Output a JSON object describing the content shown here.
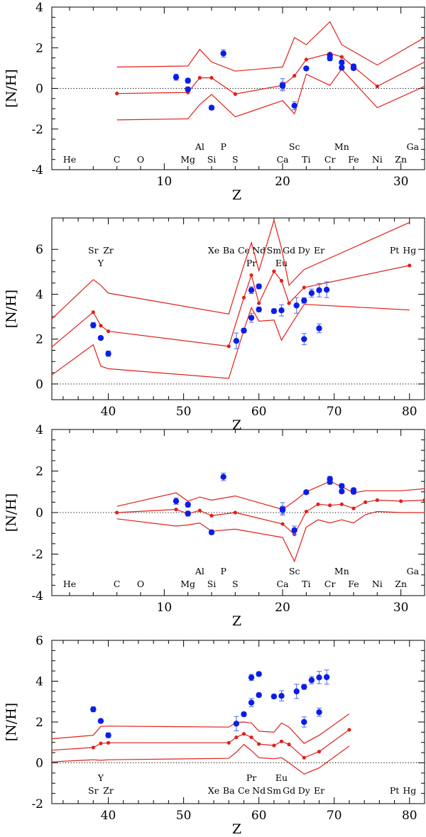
{
  "chart_data": [
    {
      "type": "scatter",
      "xlabel": "Z",
      "ylabel": "[N/H]",
      "xlim": [
        0.5,
        32
      ],
      "ylim": [
        -4,
        4
      ],
      "xticks": [
        10,
        20,
        30
      ],
      "yticks": [
        -4,
        -2,
        0,
        2,
        4
      ],
      "reference_line": 0,
      "element_labels": [
        {
          "text": "He",
          "z": 2,
          "row": "low"
        },
        {
          "text": "C",
          "z": 6,
          "row": "low"
        },
        {
          "text": "O",
          "z": 8,
          "row": "low"
        },
        {
          "text": "Mg",
          "z": 12,
          "row": "low"
        },
        {
          "text": "Si",
          "z": 14,
          "row": "low"
        },
        {
          "text": "S",
          "z": 16,
          "row": "low"
        },
        {
          "text": "Ca",
          "z": 20,
          "row": "low"
        },
        {
          "text": "Ti",
          "z": 22,
          "row": "low"
        },
        {
          "text": "Cr",
          "z": 24,
          "row": "low"
        },
        {
          "text": "Fe",
          "z": 26,
          "row": "low"
        },
        {
          "text": "Ni",
          "z": 28,
          "row": "low"
        },
        {
          "text": "Zn",
          "z": 30,
          "row": "low"
        },
        {
          "text": "Al",
          "z": 13,
          "row": "high"
        },
        {
          "text": "P",
          "z": 15,
          "row": "high"
        },
        {
          "text": "Sc",
          "z": 21,
          "row": "high"
        },
        {
          "text": "Mn",
          "z": 25,
          "row": "high"
        },
        {
          "text": "Ga",
          "z": 31,
          "row": "high"
        }
      ],
      "observed": [
        {
          "z": 11,
          "y": 0.55,
          "err": 0.15
        },
        {
          "z": 12,
          "y": 0.38,
          "err": 0.12
        },
        {
          "z": 12,
          "y": -0.05,
          "err": 0.12
        },
        {
          "z": 14,
          "y": -0.95,
          "err": 0.1
        },
        {
          "z": 15,
          "y": 1.72,
          "err": 0.18
        },
        {
          "z": 20,
          "y": 0.18,
          "err": 0.3
        },
        {
          "z": 20,
          "y": 0.12,
          "err": 0.18
        },
        {
          "z": 21,
          "y": -0.85,
          "err": 0.2
        },
        {
          "z": 22,
          "y": 0.98,
          "err": 0.08
        },
        {
          "z": 24,
          "y": 1.48,
          "err": 0.12
        },
        {
          "z": 24,
          "y": 1.62,
          "err": 0.12
        },
        {
          "z": 25,
          "y": 1.28,
          "err": 0.1
        },
        {
          "z": 25,
          "y": 1.02,
          "err": 0.1
        },
        {
          "z": 26,
          "y": 1.08,
          "err": 0.1
        },
        {
          "z": 26,
          "y": 1.0,
          "err": 0.1
        }
      ],
      "model": {
        "z": [
          6,
          12,
          13,
          14,
          16,
          20,
          21,
          22,
          24,
          25,
          28,
          32
        ],
        "mid": [
          -0.25,
          -0.2,
          0.52,
          0.52,
          -0.28,
          0.15,
          0.62,
          1.42,
          1.72,
          1.55,
          0.1,
          1.3
        ],
        "upper": [
          1.05,
          1.1,
          1.92,
          1.3,
          0.85,
          1.05,
          2.5,
          2.15,
          3.28,
          2.15,
          1.15,
          2.5
        ],
        "lower": [
          -1.55,
          -1.5,
          -0.8,
          -0.3,
          -1.4,
          -0.6,
          -1.25,
          0.7,
          0.15,
          0.95,
          -0.95,
          0.1
        ],
        "marker_z": [
          6,
          12,
          13,
          14,
          16,
          20,
          21,
          22,
          24,
          25,
          28
        ]
      }
    },
    {
      "type": "scatter",
      "xlabel": "Z",
      "ylabel": "[N/H]",
      "xlim": [
        32.5,
        82
      ],
      "ylim": [
        -0.7,
        7.4
      ],
      "xticks": [
        40,
        50,
        60,
        70,
        80
      ],
      "yticks": [
        0,
        2,
        4,
        6
      ],
      "reference_line": 0,
      "element_labels": [
        {
          "text": "Sr",
          "z": 38,
          "row": "high"
        },
        {
          "text": "Zr",
          "z": 40,
          "row": "high"
        },
        {
          "text": "Y",
          "z": 39,
          "row": "low"
        },
        {
          "text": "Xe",
          "z": 54,
          "row": "high"
        },
        {
          "text": "Ba",
          "z": 56,
          "row": "high"
        },
        {
          "text": "Ce",
          "z": 58,
          "row": "high"
        },
        {
          "text": "Nd",
          "z": 60,
          "row": "high"
        },
        {
          "text": "Sm",
          "z": 62,
          "row": "high"
        },
        {
          "text": "Gd",
          "z": 64,
          "row": "high"
        },
        {
          "text": "Dy",
          "z": 66,
          "row": "high"
        },
        {
          "text": "Er",
          "z": 68,
          "row": "high"
        },
        {
          "text": "Pt",
          "z": 78,
          "row": "high"
        },
        {
          "text": "Hg",
          "z": 80,
          "row": "high"
        },
        {
          "text": "Pr",
          "z": 59,
          "row": "low"
        },
        {
          "text": "Eu",
          "z": 63,
          "row": "low"
        }
      ],
      "observed": [
        {
          "z": 38,
          "y": 2.62,
          "err": 0.12
        },
        {
          "z": 39,
          "y": 2.05,
          "err": 0.08
        },
        {
          "z": 40,
          "y": 1.35,
          "err": 0.12
        },
        {
          "z": 57,
          "y": 1.92,
          "err": 0.35
        },
        {
          "z": 58,
          "y": 2.38,
          "err": 0.1
        },
        {
          "z": 59,
          "y": 2.95,
          "err": 0.2
        },
        {
          "z": 59,
          "y": 4.18,
          "err": 0.15
        },
        {
          "z": 60,
          "y": 4.35,
          "err": 0.1
        },
        {
          "z": 60,
          "y": 3.32,
          "err": 0.1
        },
        {
          "z": 62,
          "y": 3.25,
          "err": 0.1
        },
        {
          "z": 63,
          "y": 3.28,
          "err": 0.25
        },
        {
          "z": 65,
          "y": 3.5,
          "err": 0.35
        },
        {
          "z": 66,
          "y": 3.72,
          "err": 0.12
        },
        {
          "z": 66,
          "y": 2.0,
          "err": 0.25
        },
        {
          "z": 67,
          "y": 4.05,
          "err": 0.18
        },
        {
          "z": 68,
          "y": 4.18,
          "err": 0.3
        },
        {
          "z": 68,
          "y": 2.48,
          "err": 0.2
        },
        {
          "z": 69,
          "y": 4.2,
          "err": 0.35
        }
      ],
      "model": {
        "z": [
          32.5,
          38,
          39,
          40,
          56,
          58,
          59,
          60,
          62,
          63,
          64,
          66,
          80
        ],
        "mid": [
          1.65,
          3.2,
          2.6,
          2.35,
          1.68,
          3.85,
          4.85,
          3.6,
          5.02,
          4.6,
          3.6,
          4.3,
          5.28
        ],
        "upper": [
          2.9,
          4.65,
          4.4,
          4.05,
          3.12,
          5.3,
          6.3,
          5.05,
          7.3,
          6.05,
          4.4,
          5.1,
          7.2
        ],
        "lower": [
          0.4,
          1.75,
          0.8,
          0.68,
          0.25,
          2.4,
          3.4,
          2.8,
          2.85,
          1.95,
          2.5,
          3.55,
          3.3
        ],
        "marker_z": [
          38,
          39,
          40,
          56,
          58,
          59,
          60,
          62,
          63,
          64,
          66,
          80
        ]
      }
    },
    {
      "type": "scatter",
      "xlabel": "Z",
      "ylabel": "[N/H]",
      "xlim": [
        0.5,
        32
      ],
      "ylim": [
        -4,
        4
      ],
      "xticks": [
        10,
        20,
        30
      ],
      "yticks": [
        -4,
        -2,
        0,
        2,
        4
      ],
      "reference_line": 0,
      "element_labels": [
        {
          "text": "He",
          "z": 2,
          "row": "low"
        },
        {
          "text": "C",
          "z": 6,
          "row": "low"
        },
        {
          "text": "O",
          "z": 8,
          "row": "low"
        },
        {
          "text": "Mg",
          "z": 12,
          "row": "low"
        },
        {
          "text": "Si",
          "z": 14,
          "row": "low"
        },
        {
          "text": "S",
          "z": 16,
          "row": "low"
        },
        {
          "text": "Ca",
          "z": 20,
          "row": "low"
        },
        {
          "text": "Ti",
          "z": 22,
          "row": "low"
        },
        {
          "text": "Cr",
          "z": 24,
          "row": "low"
        },
        {
          "text": "Fe",
          "z": 26,
          "row": "low"
        },
        {
          "text": "Ni",
          "z": 28,
          "row": "low"
        },
        {
          "text": "Zn",
          "z": 30,
          "row": "low"
        },
        {
          "text": "Al",
          "z": 13,
          "row": "high"
        },
        {
          "text": "P",
          "z": 15,
          "row": "high"
        },
        {
          "text": "Sc",
          "z": 21,
          "row": "high"
        },
        {
          "text": "Mn",
          "z": 25,
          "row": "high"
        },
        {
          "text": "Ga",
          "z": 31,
          "row": "high"
        }
      ],
      "observed": [
        {
          "z": 11,
          "y": 0.55,
          "err": 0.15
        },
        {
          "z": 12,
          "y": 0.38,
          "err": 0.12
        },
        {
          "z": 12,
          "y": -0.05,
          "err": 0.12
        },
        {
          "z": 14,
          "y": -0.95,
          "err": 0.1
        },
        {
          "z": 15,
          "y": 1.72,
          "err": 0.18
        },
        {
          "z": 20,
          "y": 0.18,
          "err": 0.3
        },
        {
          "z": 20,
          "y": 0.12,
          "err": 0.18
        },
        {
          "z": 21,
          "y": -0.85,
          "err": 0.2
        },
        {
          "z": 22,
          "y": 0.98,
          "err": 0.08
        },
        {
          "z": 24,
          "y": 1.48,
          "err": 0.12
        },
        {
          "z": 24,
          "y": 1.62,
          "err": 0.12
        },
        {
          "z": 25,
          "y": 1.28,
          "err": 0.1
        },
        {
          "z": 25,
          "y": 1.02,
          "err": 0.1
        },
        {
          "z": 26,
          "y": 1.08,
          "err": 0.1
        },
        {
          "z": 26,
          "y": 1.0,
          "err": 0.1
        }
      ],
      "model": {
        "z": [
          6,
          11,
          12,
          13,
          14,
          16,
          20,
          21,
          22,
          23,
          24,
          25,
          26,
          27,
          28,
          30,
          32
        ],
        "mid": [
          0.0,
          0.15,
          -0.05,
          0.1,
          -0.15,
          0.0,
          -0.55,
          -1.05,
          0.05,
          0.4,
          0.35,
          0.4,
          0.2,
          0.5,
          0.6,
          0.55,
          0.6
        ],
        "upper": [
          0.3,
          0.95,
          0.55,
          0.75,
          0.6,
          0.8,
          0.15,
          0.55,
          1.0,
          1.25,
          1.5,
          1.25,
          0.95,
          1.05,
          1.05,
          1.05,
          1.15
        ],
        "lower": [
          -0.3,
          -0.65,
          -0.6,
          -0.5,
          -0.9,
          -0.8,
          -1.2,
          -2.35,
          -0.7,
          -0.35,
          -0.5,
          -0.35,
          -0.5,
          -0.1,
          0.05,
          0.0,
          0.0
        ],
        "marker_z": [
          6,
          11,
          12,
          13,
          14,
          16,
          20,
          21,
          22,
          23,
          24,
          25,
          26,
          27,
          28,
          30,
          32
        ]
      }
    },
    {
      "type": "scatter",
      "xlabel": "Z",
      "ylabel": "[N/H]",
      "xlim": [
        32.5,
        82
      ],
      "ylim": [
        -2,
        6
      ],
      "xticks": [
        40,
        50,
        60,
        70,
        80
      ],
      "yticks": [
        -2,
        0,
        2,
        4,
        6
      ],
      "reference_line": 0,
      "element_labels": [
        {
          "text": "Y",
          "z": 39,
          "row": "high"
        },
        {
          "text": "Sr",
          "z": 38,
          "row": "low"
        },
        {
          "text": "Zr",
          "z": 40,
          "row": "low"
        },
        {
          "text": "Pr",
          "z": 59,
          "row": "high"
        },
        {
          "text": "Eu",
          "z": 63,
          "row": "high"
        },
        {
          "text": "Xe",
          "z": 54,
          "row": "low"
        },
        {
          "text": "Ba",
          "z": 56,
          "row": "low"
        },
        {
          "text": "Ce",
          "z": 58,
          "row": "low"
        },
        {
          "text": "Nd",
          "z": 60,
          "row": "low"
        },
        {
          "text": "Sm",
          "z": 62,
          "row": "low"
        },
        {
          "text": "Gd",
          "z": 64,
          "row": "low"
        },
        {
          "text": "Dy",
          "z": 66,
          "row": "low"
        },
        {
          "text": "Er",
          "z": 68,
          "row": "low"
        },
        {
          "text": "Pt",
          "z": 78,
          "row": "low"
        },
        {
          "text": "Hg",
          "z": 80,
          "row": "low"
        }
      ],
      "observed": [
        {
          "z": 38,
          "y": 2.62,
          "err": 0.12
        },
        {
          "z": 39,
          "y": 2.05,
          "err": 0.08
        },
        {
          "z": 40,
          "y": 1.35,
          "err": 0.12
        },
        {
          "z": 57,
          "y": 1.92,
          "err": 0.35
        },
        {
          "z": 58,
          "y": 2.38,
          "err": 0.1
        },
        {
          "z": 59,
          "y": 2.95,
          "err": 0.2
        },
        {
          "z": 59,
          "y": 4.18,
          "err": 0.15
        },
        {
          "z": 60,
          "y": 4.35,
          "err": 0.1
        },
        {
          "z": 60,
          "y": 3.32,
          "err": 0.1
        },
        {
          "z": 62,
          "y": 3.25,
          "err": 0.1
        },
        {
          "z": 63,
          "y": 3.28,
          "err": 0.25
        },
        {
          "z": 65,
          "y": 3.5,
          "err": 0.35
        },
        {
          "z": 66,
          "y": 3.72,
          "err": 0.12
        },
        {
          "z": 66,
          "y": 2.0,
          "err": 0.25
        },
        {
          "z": 67,
          "y": 4.05,
          "err": 0.18
        },
        {
          "z": 68,
          "y": 4.18,
          "err": 0.3
        },
        {
          "z": 68,
          "y": 2.48,
          "err": 0.2
        },
        {
          "z": 69,
          "y": 4.2,
          "err": 0.35
        }
      ],
      "model": {
        "z": [
          32.5,
          38,
          39,
          40,
          56,
          57,
          58,
          59,
          60,
          62,
          63,
          64,
          66,
          68,
          72
        ],
        "mid": [
          0.62,
          0.75,
          0.95,
          0.98,
          0.98,
          1.25,
          1.42,
          1.25,
          0.92,
          0.85,
          1.05,
          0.9,
          0.25,
          0.55,
          1.62
        ],
        "upper": [
          1.18,
          1.35,
          1.78,
          1.8,
          1.75,
          1.98,
          2.0,
          1.95,
          1.55,
          1.5,
          1.95,
          1.75,
          0.95,
          1.35,
          2.4
        ],
        "lower": [
          0.05,
          0.15,
          0.12,
          0.15,
          0.22,
          0.52,
          0.9,
          0.6,
          0.25,
          0.2,
          0.25,
          0.0,
          -0.55,
          -0.25,
          0.82
        ],
        "marker_z": [
          38,
          39,
          40,
          56,
          57,
          58,
          59,
          60,
          62,
          63,
          64,
          66,
          68,
          72
        ]
      }
    }
  ]
}
